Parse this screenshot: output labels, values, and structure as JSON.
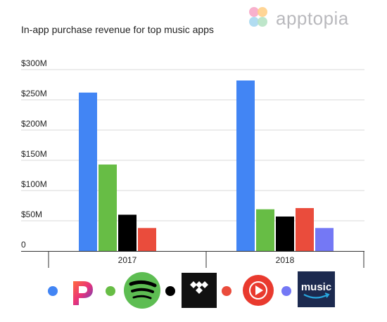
{
  "brand": {
    "name": "apptopia",
    "logo_colors": [
      "#f7a8c8",
      "#ffd08a",
      "#a9d8f0",
      "#b7e3c4"
    ]
  },
  "chart_data": {
    "type": "bar",
    "title": "In-app purchase revenue for top music apps",
    "xlabel": "",
    "ylabel": "",
    "categories": [
      "2017",
      "2018"
    ],
    "ylim": [
      0,
      300
    ],
    "y_ticks": [
      {
        "value": 0,
        "label": "0"
      },
      {
        "value": 50,
        "label": "$50M"
      },
      {
        "value": 100,
        "label": "$100M"
      },
      {
        "value": 150,
        "label": "$150M"
      },
      {
        "value": 200,
        "label": "$200M"
      },
      {
        "value": 250,
        "label": "$250M"
      },
      {
        "value": 300,
        "label": "$300M"
      }
    ],
    "grid": true,
    "legend_position": "bottom",
    "series": [
      {
        "icon": "pandora-icon",
        "color": "#4285f4",
        "values": [
          262,
          282
        ]
      },
      {
        "icon": "spotify-icon",
        "color": "#67bd45",
        "values": [
          143,
          69
        ]
      },
      {
        "icon": "tidal-icon",
        "color": "#000000",
        "values": [
          60,
          57
        ]
      },
      {
        "icon": "youtube-music-icon",
        "color": "#ea4c3c",
        "values": [
          38,
          71
        ]
      },
      {
        "icon": "amazon-music-icon",
        "color": "#7478f5",
        "values": [
          null,
          38
        ]
      }
    ],
    "legend_icon_labels": {
      "amazon": "music"
    }
  }
}
